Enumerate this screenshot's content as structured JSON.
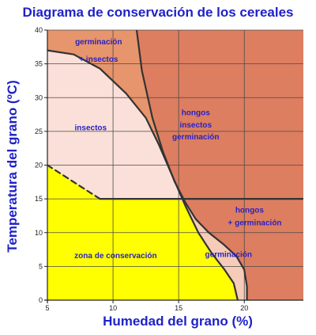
{
  "chart_data": {
    "type": "area",
    "title": "Diagrama de conservación de los cereales",
    "xlabel": "Humedad del grano (%)",
    "ylabel": "Temperatura del grano (ºC)",
    "xlim": [
      5,
      24.5
    ],
    "ylim": [
      0,
      40
    ],
    "x_ticks": [
      5,
      10,
      15,
      20
    ],
    "y_ticks": [
      0,
      5,
      10,
      15,
      20,
      25,
      30,
      35,
      40
    ],
    "grid": true,
    "colors": {
      "background": "#dd7e60",
      "germinacion_insectos": "#e7956c",
      "insectos": "#fae0d8",
      "germinacion": "#f6cbb8",
      "conservacion": "#ffff00",
      "boundary": "#333333",
      "label": "#2a22c0"
    },
    "boundaries": [
      {
        "name": "insect_limit",
        "style": "solid",
        "points": [
          [
            5,
            37
          ],
          [
            7,
            36.4
          ],
          [
            9,
            34.3
          ],
          [
            11,
            30.6
          ],
          [
            12.5,
            27
          ],
          [
            13.5,
            23
          ],
          [
            14.5,
            18.5
          ],
          [
            15.5,
            14
          ],
          [
            16.5,
            10
          ],
          [
            17.5,
            7
          ],
          [
            18.5,
            4.5
          ],
          [
            19.2,
            2.5
          ],
          [
            19.5,
            0
          ]
        ]
      },
      {
        "name": "insect_limit_extension",
        "style": "dashed",
        "points": [
          [
            5,
            37
          ],
          [
            4.6,
            37.2
          ]
        ]
      },
      {
        "name": "germination_limit",
        "style": "solid",
        "points": [
          [
            11.8,
            40
          ],
          [
            12.2,
            34
          ],
          [
            13,
            27
          ],
          [
            13.8,
            22
          ],
          [
            14.7,
            17.5
          ],
          [
            15.5,
            14.5
          ],
          [
            16.3,
            12
          ],
          [
            17.3,
            10
          ],
          [
            18.4,
            8.3
          ],
          [
            19.4,
            6.5
          ],
          [
            20,
            4.5
          ],
          [
            20.2,
            2
          ],
          [
            20.2,
            0
          ]
        ]
      },
      {
        "name": "fungi_threshold",
        "style": "solid",
        "points": [
          [
            9,
            15
          ],
          [
            24.5,
            15
          ]
        ]
      },
      {
        "name": "conservation_limit",
        "style": "dashed",
        "points": [
          [
            5,
            20
          ],
          [
            9,
            15
          ]
        ]
      }
    ],
    "regions": [
      {
        "name": "germinación + insectos",
        "fill": "#e7956c",
        "polygon": [
          [
            5,
            40
          ],
          [
            11.8,
            40
          ],
          [
            12.2,
            34
          ],
          [
            13,
            27
          ],
          [
            13.8,
            22
          ],
          [
            14.7,
            17.5
          ],
          [
            15.5,
            14.5
          ],
          [
            15.5,
            14
          ],
          [
            14.5,
            18.5
          ],
          [
            13.5,
            23
          ],
          [
            12.5,
            27
          ],
          [
            11,
            30.6
          ],
          [
            9,
            34.3
          ],
          [
            7,
            36.4
          ],
          [
            5,
            37
          ]
        ]
      },
      {
        "name": "insectos",
        "fill": "#fae0d8",
        "polygon": [
          [
            5,
            37
          ],
          [
            7,
            36.4
          ],
          [
            9,
            34.3
          ],
          [
            11,
            30.6
          ],
          [
            12.5,
            27
          ],
          [
            13.5,
            23
          ],
          [
            14.5,
            18.5
          ],
          [
            15.5,
            14
          ],
          [
            15,
            15
          ],
          [
            9,
            15
          ],
          [
            5,
            20
          ]
        ]
      },
      {
        "name": "germinación",
        "fill": "#f6cbb8",
        "polygon": [
          [
            15.5,
            14
          ],
          [
            16.5,
            10
          ],
          [
            17.5,
            7
          ],
          [
            18.5,
            4.5
          ],
          [
            19.2,
            2.5
          ],
          [
            19.5,
            0
          ],
          [
            20.2,
            0
          ],
          [
            20.2,
            2
          ],
          [
            20,
            4.5
          ],
          [
            19.4,
            6.5
          ],
          [
            18.4,
            8.3
          ],
          [
            17.3,
            10
          ],
          [
            16.3,
            12
          ],
          [
            15.5,
            14.5
          ]
        ]
      },
      {
        "name": "zona de conservación",
        "fill": "#ffff00",
        "polygon": [
          [
            5,
            0
          ],
          [
            19.5,
            0
          ],
          [
            19.2,
            2.5
          ],
          [
            18.5,
            4.5
          ],
          [
            17.5,
            7
          ],
          [
            16.5,
            10
          ],
          [
            15.5,
            14
          ],
          [
            15,
            15
          ],
          [
            9,
            15
          ],
          [
            5,
            20
          ]
        ]
      }
    ],
    "annotations": [
      {
        "text": "germinación",
        "x": 8.9,
        "y": 38.3
      },
      {
        "text": "+ insectos",
        "x": 8.9,
        "y": 35.7
      },
      {
        "text": "insectos",
        "x": 8.3,
        "y": 25.6
      },
      {
        "text": "hongos",
        "x": 16.3,
        "y": 27.8
      },
      {
        "text": "insectos",
        "x": 16.3,
        "y": 26.0
      },
      {
        "text": "germinación",
        "x": 16.3,
        "y": 24.2
      },
      {
        "text": "hongos",
        "x": 20.4,
        "y": 13.4
      },
      {
        "text": "+ germinación",
        "x": 20.8,
        "y": 11.5
      },
      {
        "text": "zona de conservación",
        "x": 10.2,
        "y": 6.6
      },
      {
        "text": "germinación",
        "x": 18.8,
        "y": 6.8
      }
    ]
  }
}
